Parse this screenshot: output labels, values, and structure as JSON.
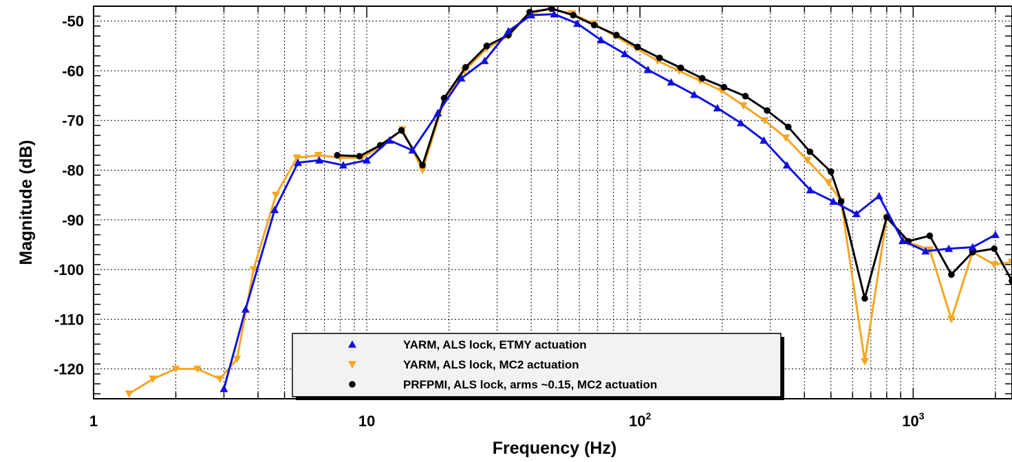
{
  "chart_data": {
    "type": "line",
    "title": "",
    "xlabel": "Frequency (Hz)",
    "ylabel": "Magnitude (dB)",
    "xscale": "log",
    "xlim": [
      1,
      2300
    ],
    "ylim": [
      -126,
      -47
    ],
    "grid": true,
    "legend_position": "bottom-center",
    "x_ticks": [
      {
        "value": 1,
        "base": "1",
        "exp": ""
      },
      {
        "value": 10,
        "base": "10",
        "exp": ""
      },
      {
        "value": 100,
        "base": "10",
        "exp": "2"
      },
      {
        "value": 1000,
        "base": "10",
        "exp": "3"
      }
    ],
    "y_ticks": [
      -50,
      -60,
      -70,
      -80,
      -90,
      -100,
      -110,
      -120
    ],
    "series": [
      {
        "name": "YARM, ALS lock, ETMY actuation",
        "color": "#1010e0",
        "marker": "triangle-up",
        "x": [
          3.0,
          3.6,
          4.6,
          5.6,
          6.7,
          8.2,
          10.0,
          12.1,
          14.7,
          18.2,
          22.2,
          27.0,
          33.0,
          40.0,
          48.5,
          59.0,
          72.0,
          88.0,
          107,
          130,
          158,
          192,
          234,
          284,
          345,
          420,
          510,
          620,
          750,
          915,
          1110,
          1350,
          1650,
          2000
        ],
        "y": [
          -124,
          -108,
          -88,
          -78.5,
          -78,
          -79,
          -78,
          -74,
          -76,
          -68.5,
          -61.5,
          -58,
          -52,
          -48.8,
          -48.6,
          -50.5,
          -53.8,
          -56.6,
          -59.8,
          -62.3,
          -64.8,
          -67.5,
          -70.5,
          -74,
          -79,
          -84,
          -86.3,
          -88.8,
          -85.2,
          -94.2,
          -96.3,
          -95.8,
          -95.5,
          -93
        ],
        "legend_label": "YARM, ALS lock, ETMY actuation"
      },
      {
        "name": "YARM, ALS lock, MC2 actuation",
        "color": "#f5a623",
        "marker": "triangle-down",
        "x": [
          1.35,
          1.65,
          2.0,
          2.4,
          2.9,
          3.35,
          3.85,
          4.65,
          5.55,
          6.65,
          8.0,
          9.6,
          11.4,
          13.5,
          16.0,
          19.2,
          22.8,
          27.5,
          33.0,
          39.5,
          47.0,
          56.5,
          67.5,
          81.0,
          97.0,
          116,
          139,
          166,
          199,
          239,
          286,
          342,
          410,
          490,
          545,
          665,
          800,
          960,
          1150,
          1380,
          1650,
          1980,
          2300
        ],
        "y": [
          -125,
          -122,
          -120,
          -120,
          -122,
          -118,
          -100,
          -85,
          -77.5,
          -77,
          -77.5,
          -77.5,
          -75,
          -71.8,
          -80,
          -66,
          -60,
          -55.5,
          -53,
          -48.5,
          -47.5,
          -48.5,
          -50.5,
          -53,
          -55.5,
          -58,
          -60,
          -62,
          -64,
          -67,
          -70,
          -73.5,
          -78,
          -82.5,
          -86.3,
          -118.5,
          -89.5,
          -94.5,
          -96,
          -110,
          -96.5,
          -99,
          -98.5
        ],
        "legend_label": "YARM, ALS lock, MC2 actuation"
      },
      {
        "name": "PRFPMI, ALS lock, arms ~0.15, MC2 actuation",
        "color": "#000000",
        "marker": "circle",
        "x": [
          7.8,
          9.4,
          11.2,
          13.4,
          16.0,
          19.2,
          23.0,
          27.5,
          33.0,
          39.5,
          47.5,
          57.0,
          68.0,
          82.0,
          98.0,
          118,
          141,
          169,
          203,
          243,
          292,
          349,
          419,
          500,
          545,
          665,
          800,
          960,
          1150,
          1380,
          1650,
          1980,
          2300
        ],
        "y": [
          -77,
          -77.2,
          -75,
          -72,
          -79,
          -65.5,
          -59.3,
          -55,
          -52.8,
          -48.2,
          -47.5,
          -48.8,
          -50.8,
          -52.8,
          -55.2,
          -57.4,
          -59.4,
          -61.5,
          -63.3,
          -65.1,
          -68,
          -71.3,
          -76.3,
          -80.3,
          -86.3,
          -105.8,
          -89.5,
          -94.3,
          -93.2,
          -101,
          -96.5,
          -95.8,
          -102.3
        ],
        "legend_label": "PRFPMI, ALS lock, arms ~0.15, MC2 actuation"
      }
    ]
  }
}
